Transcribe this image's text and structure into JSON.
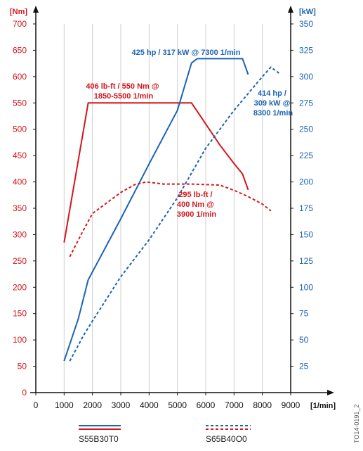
{
  "colors": {
    "torque": "#d4161c",
    "power": "#1b63b5",
    "axis": "#111111",
    "grid": "#cfcfcf"
  },
  "chart_data": {
    "type": "line",
    "x_unit": "[1/min]",
    "y_left_unit": "[Nm]",
    "y_right_unit": "[kW]",
    "xlim": [
      0,
      9000
    ],
    "ylim_left": [
      0,
      700
    ],
    "ylim_right": [
      0,
      350
    ],
    "x_ticks": [
      0,
      1000,
      2000,
      3000,
      4000,
      5000,
      6000,
      7000,
      8000,
      9000
    ],
    "y_left_ticks": [
      0,
      50,
      100,
      150,
      200,
      250,
      300,
      350,
      400,
      450,
      500,
      550,
      600,
      650,
      700
    ],
    "y_right_ticks": [
      25,
      50,
      75,
      100,
      125,
      150,
      175,
      200,
      225,
      250,
      275,
      300,
      325,
      350
    ],
    "grid": "vertical",
    "legend_position": "bottom",
    "series": [
      {
        "name": "S55B30T0",
        "quantity": "torque",
        "axis": "left",
        "style": "solid",
        "points": [
          [
            1000,
            285
          ],
          [
            1850,
            550
          ],
          [
            5500,
            550
          ],
          [
            6000,
            510
          ],
          [
            6500,
            470
          ],
          [
            7000,
            435
          ],
          [
            7300,
            415
          ],
          [
            7500,
            385
          ]
        ]
      },
      {
        "name": "S55B30T0",
        "quantity": "power",
        "axis": "right",
        "style": "solid",
        "points": [
          [
            1000,
            30
          ],
          [
            1500,
            70
          ],
          [
            1850,
            107
          ],
          [
            3000,
            165
          ],
          [
            4000,
            217
          ],
          [
            5000,
            268
          ],
          [
            5500,
            313
          ],
          [
            5700,
            317
          ],
          [
            7300,
            317
          ],
          [
            7500,
            302
          ]
        ]
      },
      {
        "name": "S65B40O0",
        "quantity": "torque",
        "axis": "left",
        "style": "dashed",
        "points": [
          [
            1200,
            258
          ],
          [
            1600,
            300
          ],
          [
            2000,
            340
          ],
          [
            2500,
            360
          ],
          [
            3000,
            380
          ],
          [
            3500,
            395
          ],
          [
            3900,
            400
          ],
          [
            4500,
            396
          ],
          [
            5500,
            396
          ],
          [
            6500,
            394
          ],
          [
            7000,
            384
          ],
          [
            7500,
            372
          ],
          [
            8000,
            358
          ],
          [
            8300,
            345
          ]
        ]
      },
      {
        "name": "S65B40O0",
        "quantity": "power",
        "axis": "right",
        "style": "dashed",
        "points": [
          [
            1200,
            30
          ],
          [
            1700,
            55
          ],
          [
            2000,
            68
          ],
          [
            3000,
            110
          ],
          [
            4000,
            145
          ],
          [
            5000,
            185
          ],
          [
            6000,
            232
          ],
          [
            7000,
            268
          ],
          [
            8000,
            300
          ],
          [
            8300,
            309
          ],
          [
            8600,
            303
          ]
        ]
      }
    ],
    "annotations": [
      {
        "lines": [
          "425 hp / 317 kW @ 7300 1/min"
        ],
        "color": "power"
      },
      {
        "lines": [
          "406 lb-ft / 550 Nm @",
          "1850-5500 1/min"
        ],
        "color": "torque"
      },
      {
        "lines": [
          "414 hp /",
          "309 kW @",
          "8300 1/min"
        ],
        "color": "power"
      },
      {
        "lines": [
          "295 lb-ft /",
          "400 Nm @",
          "3900 1/min"
        ],
        "color": "torque"
      }
    ],
    "legend": [
      {
        "name": "S55B30T0",
        "style": "solid"
      },
      {
        "name": "S65B40O0",
        "style": "dashed"
      }
    ],
    "figure_code": "TO14-0191_2"
  }
}
